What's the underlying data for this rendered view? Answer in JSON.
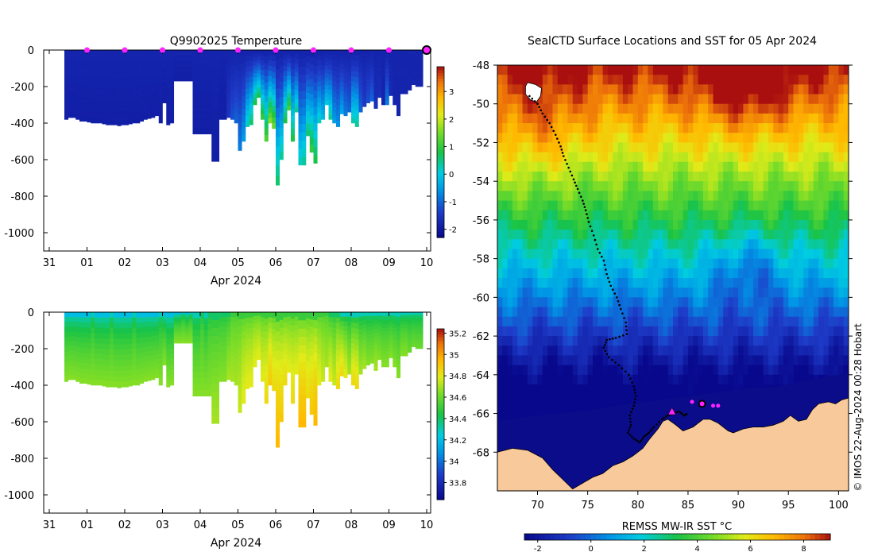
{
  "chart_data": [
    {
      "type": "heatmap",
      "title": "Q9902025  Temperature",
      "xlabel": "Apr 2024",
      "ylabel": "",
      "x_ticks": [
        "31",
        "01",
        "02",
        "03",
        "04",
        "05",
        "06",
        "07",
        "08",
        "09",
        "10"
      ],
      "xlim": [
        0,
        10
      ],
      "ylim": [
        -1100,
        0
      ],
      "y_ticks": [
        0,
        -200,
        -400,
        -600,
        -800,
        -1000
      ],
      "colorbar": {
        "min": -2.3,
        "max": 3.9,
        "ticks": [
          3,
          2,
          1,
          0,
          -1,
          -2
        ],
        "tick_labels": [
          "3",
          "2",
          "1",
          "0",
          "-1",
          "-2"
        ]
      },
      "surface_markers_days": [
        1,
        2,
        3,
        4,
        5,
        6,
        7,
        8,
        9
      ],
      "current_position_day": 10,
      "profiles": {
        "day": [
          0.45,
          0.55,
          0.65,
          0.75,
          0.85,
          0.95,
          1.05,
          1.15,
          1.25,
          1.35,
          1.45,
          1.55,
          1.65,
          1.75,
          1.85,
          1.95,
          2.05,
          2.15,
          2.25,
          2.35,
          2.45,
          2.55,
          2.65,
          2.75,
          2.85,
          2.95,
          3.05,
          3.15,
          3.25,
          3.35,
          3.45,
          3.55,
          3.65,
          3.75,
          3.85,
          3.95,
          4.05,
          4.15,
          4.25,
          4.35,
          4.45,
          4.55,
          4.65,
          4.75,
          4.85,
          4.95,
          5.05,
          5.15,
          5.25,
          5.35,
          5.45,
          5.55,
          5.65,
          5.75,
          5.85,
          5.95,
          6.05,
          6.15,
          6.25,
          6.35,
          6.45,
          6.55,
          6.65,
          6.75,
          6.85,
          6.95,
          7.05,
          7.15,
          7.25,
          7.35,
          7.45,
          7.55,
          7.65,
          7.75,
          7.85,
          7.95,
          8.05,
          8.15,
          8.25,
          8.35,
          8.45,
          8.55,
          8.65,
          8.75,
          8.85,
          8.95,
          9.05,
          9.15,
          9.25,
          9.35,
          9.45,
          9.55,
          9.65,
          9.75,
          9.85
        ],
        "max_depth_m": [
          380,
          370,
          370,
          380,
          390,
          390,
          395,
          400,
          400,
          400,
          405,
          410,
          410,
          410,
          415,
          410,
          410,
          405,
          400,
          400,
          390,
          380,
          375,
          370,
          360,
          400,
          290,
          410,
          400,
          170,
          170,
          170,
          170,
          170,
          460,
          460,
          460,
          460,
          460,
          610,
          610,
          380,
          380,
          370,
          380,
          400,
          550,
          500,
          420,
          410,
          300,
          260,
          380,
          500,
          400,
          430,
          740,
          600,
          400,
          330,
          500,
          340,
          630,
          630,
          470,
          560,
          620,
          400,
          380,
          300,
          380,
          400,
          420,
          350,
          360,
          340,
          400,
          420,
          340,
          310,
          290,
          280,
          320,
          260,
          300,
          300,
          250,
          300,
          360,
          240,
          240,
          220,
          190,
          200,
          200
        ],
        "surface_temp_c": [
          -1.8,
          -1.8,
          -1.8,
          -1.8,
          -1.8,
          -1.8,
          -1.8,
          -1.8,
          -1.8,
          -1.8,
          -1.8,
          -1.8,
          -1.8,
          -1.8,
          -1.8,
          -1.8,
          -1.8,
          -1.8,
          -1.8,
          -1.8,
          -1.8,
          -1.8,
          -1.8,
          -1.8,
          -1.8,
          -1.8,
          -1.8,
          -1.8,
          -1.8,
          -1.8,
          -1.8,
          -1.8,
          -1.8,
          -1.8,
          -1.8,
          -1.8,
          -1.8,
          -1.8,
          -1.8,
          -1.8,
          -1.8,
          -1.8,
          -1.8,
          -1.8,
          -1.8,
          -1.8,
          -1.8,
          -1.8,
          -1.8,
          -1.8,
          -1.8,
          -1.8,
          -1.8,
          -1.8,
          -1.8,
          -1.8,
          -1.8,
          -1.8,
          -1.8,
          -1.8,
          -1.8,
          -1.8,
          -1.8,
          -1.8,
          -1.8,
          -1.8,
          -1.8,
          -1.8,
          -1.8,
          -1.8,
          -1.8,
          -1.8,
          -1.8,
          -1.8,
          -1.8,
          -1.8,
          -1.8,
          -1.8,
          -1.8,
          -1.8,
          -1.8,
          -1.8,
          -1.8,
          -1.8,
          -1.8,
          -1.8,
          -1.8,
          -1.8,
          -1.8,
          -1.8,
          -1.8,
          -1.8,
          -1.8,
          -1.8,
          -1.8
        ],
        "deep_temp_c": [
          -1.9,
          -1.9,
          -1.9,
          -1.9,
          -1.9,
          -1.9,
          -1.9,
          -1.9,
          -1.9,
          -1.9,
          -1.9,
          -1.9,
          -1.9,
          -1.9,
          -1.9,
          -1.9,
          -1.9,
          -1.9,
          -1.9,
          -1.9,
          -1.9,
          -1.9,
          -1.9,
          -1.9,
          -1.9,
          -1.9,
          -1.9,
          -1.9,
          -1.9,
          -1.9,
          -1.9,
          -1.9,
          -1.9,
          -1.9,
          -1.9,
          -1.9,
          -1.9,
          -1.9,
          -1.9,
          -1.9,
          -1.9,
          -1.9,
          -1.9,
          -1.5,
          -1.2,
          -1.0,
          -0.8,
          -0.5,
          0.2,
          0.6,
          0.8,
          0.8,
          1.0,
          1.2,
          1.6,
          1.4,
          0.6,
          0.4,
          0.8,
          1.2,
          0.8,
          0.4,
          0.2,
          0.4,
          0.6,
          1.0,
          0.8,
          0.2,
          -0.2,
          0.0,
          0.4,
          -0.5,
          -0.6,
          -0.4,
          -0.8,
          -1.0,
          0.3,
          0.4,
          -1.0,
          -1.4,
          -1.2,
          -1.0,
          -1.6,
          -1.6,
          -1.8,
          -0.8,
          -1.7,
          -1.8,
          -1.8,
          -1.8,
          -1.8,
          -1.8,
          -1.8,
          -1.8,
          -1.8
        ]
      }
    },
    {
      "type": "heatmap",
      "title": "",
      "xlabel": "Apr 2024",
      "ylabel": "",
      "x_ticks": [
        "31",
        "01",
        "02",
        "03",
        "04",
        "05",
        "06",
        "07",
        "08",
        "09",
        "10"
      ],
      "xlim": [
        0,
        10
      ],
      "ylim": [
        -1100,
        0
      ],
      "y_ticks": [
        0,
        -200,
        -400,
        -600,
        -800,
        -1000
      ],
      "colorbar": {
        "min": 33.64,
        "max": 35.24,
        "ticks": [
          35.2,
          35,
          34.8,
          34.6,
          34.4,
          34.2,
          34,
          33.8
        ],
        "tick_labels": [
          "35.2",
          "35",
          "34.8",
          "34.6",
          "34.4",
          "34.2",
          "34",
          "33.8"
        ]
      },
      "profiles": {
        "surface_salinity": [
          34.2,
          34.2,
          34.2,
          34.2,
          34.2,
          34.2,
          34.2,
          34.3,
          34.2,
          34.2,
          34.2,
          34.2,
          34.3,
          34.2,
          34.2,
          34.2,
          34.2,
          34.2,
          34.3,
          34.2,
          34.2,
          34.2,
          34.2,
          34.2,
          34.2,
          34.3,
          34.2,
          34.2,
          34.2,
          34.2,
          34.2,
          34.3,
          34.2,
          34.3,
          34.3,
          34.3,
          34.4,
          34.3,
          34.4,
          34.4,
          34.4,
          34.4,
          34.4,
          34.4,
          34.5,
          34.5,
          34.5,
          34.5,
          34.5,
          34.5,
          34.5,
          34.5,
          34.5,
          34.5,
          34.5,
          34.5,
          34.5,
          34.5,
          34.5,
          34.5,
          34.5,
          34.5,
          34.5,
          34.5,
          34.5,
          34.5,
          34.5,
          34.5,
          34.5,
          34.5,
          34.4,
          34.4,
          34.4,
          34.3,
          34.3,
          34.3,
          34.3,
          34.3,
          34.3,
          34.3,
          34.3,
          34.3,
          34.3,
          34.3,
          34.3,
          34.3,
          34.3,
          34.3,
          34.3,
          34.3,
          34.3,
          34.3,
          34.3,
          34.3,
          34.3
        ],
        "deep_salinity": [
          34.65,
          34.65,
          34.65,
          34.65,
          34.65,
          34.65,
          34.65,
          34.65,
          34.65,
          34.65,
          34.65,
          34.65,
          34.65,
          34.65,
          34.65,
          34.65,
          34.65,
          34.65,
          34.65,
          34.65,
          34.65,
          34.65,
          34.65,
          34.65,
          34.65,
          34.65,
          34.65,
          34.65,
          34.65,
          34.65,
          34.65,
          34.65,
          34.65,
          34.65,
          34.65,
          34.65,
          34.65,
          34.65,
          34.65,
          34.7,
          34.7,
          34.65,
          34.65,
          34.7,
          34.7,
          34.7,
          34.75,
          34.8,
          34.8,
          34.8,
          34.8,
          34.8,
          34.8,
          34.85,
          34.9,
          34.85,
          34.95,
          34.9,
          34.85,
          34.8,
          34.85,
          34.8,
          34.95,
          34.95,
          34.85,
          34.9,
          34.95,
          34.8,
          34.75,
          34.7,
          34.8,
          34.75,
          34.85,
          34.85,
          34.8,
          34.7,
          34.85,
          34.85,
          34.7,
          34.7,
          34.65,
          34.65,
          34.7,
          34.65,
          34.65,
          34.65,
          34.65,
          34.65,
          34.65,
          34.65,
          34.65,
          34.6,
          34.6,
          34.6,
          34.6
        ]
      }
    },
    {
      "type": "heatmap",
      "title": "SealCTD Surface Locations and SST for 05 Apr 2024",
      "xlabel": "",
      "ylabel": "",
      "x_ticks": [
        70,
        75,
        80,
        85,
        90,
        95,
        100
      ],
      "xlim": [
        66,
        101
      ],
      "y_ticks": [
        -48,
        -50,
        -52,
        -54,
        -56,
        -58,
        -60,
        -62,
        -64,
        -66,
        -68
      ],
      "ylim": [
        -70,
        -48
      ],
      "colorbar_label": "REMSS MW-IR SST °C",
      "colorbar": {
        "min": -2.5,
        "max": 9.0,
        "ticks": [
          -2,
          0,
          2,
          4,
          6,
          8
        ],
        "tick_labels": [
          "-2",
          "0",
          "2",
          "4",
          "6",
          "8"
        ]
      },
      "track": {
        "lon": [
          69.2,
          70.0,
          70.5,
          71.2,
          71.8,
          72.3,
          72.6,
          73.1,
          73.6,
          74.0,
          74.5,
          74.8,
          75.1,
          75.6,
          76.0,
          76.6,
          76.9,
          77.3,
          77.9,
          78.3,
          78.8,
          78.9,
          77.8,
          76.9,
          76.6,
          77.1,
          78.1,
          79.1,
          79.6,
          79.8,
          79.6,
          79.2,
          79.3,
          79.0,
          79.6,
          80.2,
          80.6,
          81.1,
          81.6,
          82.4,
          83.0,
          83.5,
          84.1,
          84.6,
          85.0
        ],
        "lat": [
          -49.6,
          -50.0,
          -50.5,
          -51.0,
          -51.6,
          -52.2,
          -52.7,
          -53.3,
          -53.9,
          -54.4,
          -55.0,
          -55.5,
          -56.1,
          -56.8,
          -57.5,
          -58.1,
          -58.8,
          -59.4,
          -60.0,
          -60.6,
          -61.3,
          -61.9,
          -62.1,
          -62.2,
          -62.6,
          -63.1,
          -63.5,
          -64.0,
          -64.6,
          -65.1,
          -65.6,
          -66.1,
          -66.6,
          -67.0,
          -67.3,
          -67.5,
          -67.2,
          -67.0,
          -66.7,
          -66.3,
          -66.1,
          -66.0,
          -65.9,
          -66.1,
          -66.0
        ]
      },
      "surface_locations": {
        "lon": [
          83.4,
          85.4,
          86.4,
          87.5,
          88.0
        ],
        "lat": [
          -65.9,
          -65.4,
          -65.5,
          -65.6,
          -65.6
        ]
      },
      "current_location": {
        "lon": 86.4,
        "lat": -65.5
      },
      "highlight_location": {
        "lon": 83.4,
        "lat": -65.9
      }
    }
  ],
  "credit": "© IMOS 22-Aug-2024 00:28 Hobart"
}
